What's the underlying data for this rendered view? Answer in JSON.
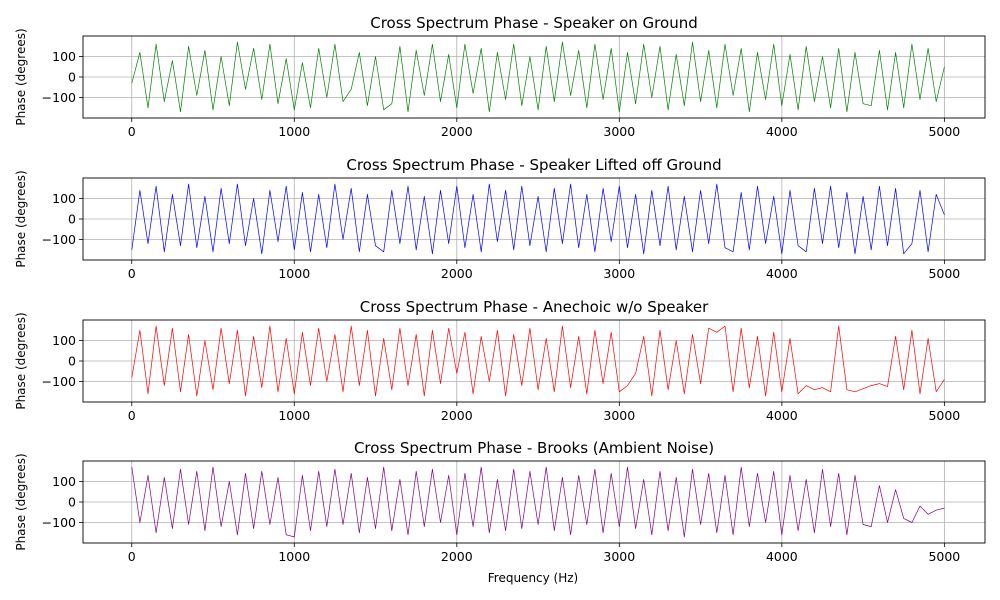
{
  "figure": {
    "xlabel": "Frequency (Hz)"
  },
  "chart_data": [
    {
      "type": "line",
      "title": "Cross Spectrum Phase - Speaker on Ground",
      "ylabel": "Phase (degrees)",
      "xlim": [
        -300,
        5250
      ],
      "ylim": [
        -200,
        200
      ],
      "xticks": [
        0,
        1000,
        2000,
        3000,
        4000,
        5000
      ],
      "yticks": [
        -100,
        0,
        100
      ],
      "grid": true,
      "series": [
        {
          "color": "#008000",
          "x": [
            0,
            50,
            100,
            150,
            200,
            250,
            300,
            350,
            400,
            450,
            500,
            550,
            600,
            650,
            700,
            750,
            800,
            850,
            900,
            950,
            1000,
            1050,
            1100,
            1150,
            1200,
            1250,
            1300,
            1350,
            1400,
            1450,
            1500,
            1550,
            1600,
            1650,
            1700,
            1750,
            1800,
            1850,
            1900,
            1950,
            2000,
            2050,
            2100,
            2150,
            2200,
            2250,
            2300,
            2350,
            2400,
            2450,
            2500,
            2550,
            2600,
            2650,
            2700,
            2750,
            2800,
            2850,
            2900,
            2950,
            3000,
            3050,
            3100,
            3150,
            3200,
            3250,
            3300,
            3350,
            3400,
            3450,
            3500,
            3550,
            3600,
            3650,
            3700,
            3750,
            3800,
            3850,
            3900,
            3950,
            4000,
            4050,
            4100,
            4150,
            4200,
            4250,
            4300,
            4350,
            4400,
            4450,
            4500,
            4550,
            4600,
            4650,
            4700,
            4750,
            4800,
            4850,
            4900,
            4950,
            5000
          ],
          "y": [
            -30,
            120,
            -150,
            160,
            -120,
            80,
            -170,
            150,
            -90,
            130,
            -160,
            100,
            -140,
            170,
            -60,
            140,
            -110,
            160,
            -130,
            90,
            -160,
            70,
            -150,
            140,
            -100,
            160,
            -120,
            -60,
            120,
            -140,
            100,
            -160,
            -130,
            150,
            -170,
            130,
            -90,
            160,
            -120,
            110,
            -150,
            160,
            -80,
            140,
            -170,
            120,
            -110,
            160,
            -140,
            100,
            -160,
            150,
            -120,
            170,
            -90,
            130,
            -150,
            160,
            -110,
            140,
            -170,
            120,
            -130,
            160,
            -100,
            150,
            -160,
            110,
            -140,
            170,
            -120,
            130,
            -150,
            160,
            -90,
            140,
            -170,
            120,
            -110,
            160,
            -140,
            110,
            -160,
            150,
            -120,
            100,
            -150,
            140,
            -170,
            120,
            -130,
            -140,
            130,
            -160,
            120,
            -150,
            160,
            -110,
            140,
            -120,
            50
          ]
        }
      ]
    },
    {
      "type": "line",
      "title": "Cross Spectrum Phase - Speaker Lifted off Ground",
      "ylabel": "Phase (degrees)",
      "xlim": [
        -300,
        5250
      ],
      "ylim": [
        -200,
        200
      ],
      "xticks": [
        0,
        1000,
        2000,
        3000,
        4000,
        5000
      ],
      "yticks": [
        -100,
        0,
        100
      ],
      "grid": true,
      "series": [
        {
          "color": "#0000ff",
          "x": [
            0,
            50,
            100,
            150,
            200,
            250,
            300,
            350,
            400,
            450,
            500,
            550,
            600,
            650,
            700,
            750,
            800,
            850,
            900,
            950,
            1000,
            1050,
            1100,
            1150,
            1200,
            1250,
            1300,
            1350,
            1400,
            1450,
            1500,
            1550,
            1600,
            1650,
            1700,
            1750,
            1800,
            1850,
            1900,
            1950,
            2000,
            2050,
            2100,
            2150,
            2200,
            2250,
            2300,
            2350,
            2400,
            2450,
            2500,
            2550,
            2600,
            2650,
            2700,
            2750,
            2800,
            2850,
            2900,
            2950,
            3000,
            3050,
            3100,
            3150,
            3200,
            3250,
            3300,
            3350,
            3400,
            3450,
            3500,
            3550,
            3600,
            3650,
            3700,
            3750,
            3800,
            3850,
            3900,
            3950,
            4000,
            4050,
            4100,
            4150,
            4200,
            4250,
            4300,
            4350,
            4400,
            4450,
            4500,
            4550,
            4600,
            4650,
            4700,
            4750,
            4800,
            4850,
            4900,
            4950,
            5000
          ],
          "y": [
            -150,
            140,
            -120,
            160,
            -160,
            120,
            -130,
            170,
            -140,
            110,
            -160,
            150,
            -120,
            170,
            -130,
            100,
            -170,
            140,
            -110,
            160,
            -150,
            130,
            -160,
            120,
            -140,
            170,
            -100,
            150,
            -160,
            120,
            -130,
            -160,
            140,
            -120,
            160,
            -150,
            110,
            -170,
            140,
            -120,
            160,
            -140,
            120,
            -160,
            170,
            -110,
            140,
            -150,
            160,
            -130,
            110,
            -160,
            150,
            -120,
            170,
            -140,
            120,
            -160,
            150,
            -110,
            160,
            -140,
            120,
            -170,
            140,
            -130,
            160,
            -150,
            110,
            -160,
            140,
            -120,
            170,
            -140,
            -160,
            130,
            -150,
            160,
            -120,
            110,
            -170,
            140,
            -130,
            -160,
            150,
            -120,
            160,
            -140,
            130,
            -170,
            110,
            -150,
            160,
            -130,
            150,
            -170,
            -120,
            140,
            -160,
            120,
            20
          ]
        }
      ]
    },
    {
      "type": "line",
      "title": "Cross Spectrum Phase - Anechoic w/o Speaker",
      "ylabel": "Phase (degrees)",
      "xlim": [
        -300,
        5250
      ],
      "ylim": [
        -200,
        200
      ],
      "xticks": [
        0,
        1000,
        2000,
        3000,
        4000,
        5000
      ],
      "yticks": [
        -100,
        0,
        100
      ],
      "grid": true,
      "series": [
        {
          "color": "#ff0000",
          "x": [
            0,
            50,
            100,
            150,
            200,
            250,
            300,
            350,
            400,
            450,
            500,
            550,
            600,
            650,
            700,
            750,
            800,
            850,
            900,
            950,
            1000,
            1050,
            1100,
            1150,
            1200,
            1250,
            1300,
            1350,
            1400,
            1450,
            1500,
            1550,
            1600,
            1650,
            1700,
            1750,
            1800,
            1850,
            1900,
            1950,
            2000,
            2050,
            2100,
            2150,
            2200,
            2250,
            2300,
            2350,
            2400,
            2450,
            2500,
            2550,
            2600,
            2650,
            2700,
            2750,
            2800,
            2850,
            2900,
            2950,
            3000,
            3050,
            3100,
            3150,
            3200,
            3250,
            3300,
            3350,
            3400,
            3450,
            3500,
            3550,
            3600,
            3650,
            3700,
            3750,
            3800,
            3850,
            3900,
            3950,
            4000,
            4050,
            4100,
            4150,
            4200,
            4250,
            4300,
            4350,
            4400,
            4450,
            4500,
            4550,
            4600,
            4650,
            4700,
            4750,
            4800,
            4850,
            4900,
            4950,
            5000
          ],
          "y": [
            -80,
            150,
            -160,
            170,
            -120,
            160,
            -150,
            130,
            -170,
            100,
            -140,
            160,
            -110,
            150,
            -170,
            120,
            -130,
            170,
            -150,
            110,
            -160,
            140,
            -120,
            160,
            -100,
            130,
            -150,
            170,
            -120,
            150,
            -170,
            110,
            -140,
            160,
            -120,
            130,
            -170,
            150,
            -110,
            160,
            -60,
            140,
            -160,
            120,
            -100,
            150,
            -170,
            130,
            -120,
            160,
            -140,
            110,
            -150,
            170,
            -130,
            120,
            -160,
            150,
            -110,
            140,
            -150,
            -120,
            -60,
            120,
            -170,
            150,
            -140,
            100,
            -160,
            130,
            -110,
            160,
            140,
            170,
            -150,
            160,
            -130,
            120,
            -170,
            140,
            -150,
            110,
            -160,
            -120,
            -140,
            -130,
            -150,
            170,
            -140,
            -150,
            -135,
            -120,
            -110,
            -125,
            120,
            -140,
            150,
            -160,
            110,
            -150,
            -90
          ]
        }
      ]
    },
    {
      "type": "line",
      "title": "Cross Spectrum Phase - Brooks (Ambient Noise)",
      "ylabel": "Phase (degrees)",
      "xlim": [
        -300,
        5250
      ],
      "ylim": [
        -200,
        200
      ],
      "xticks": [
        0,
        1000,
        2000,
        3000,
        4000,
        5000
      ],
      "yticks": [
        -100,
        0,
        100
      ],
      "grid": true,
      "series": [
        {
          "color": "#800080",
          "x": [
            0,
            50,
            100,
            150,
            200,
            250,
            300,
            350,
            400,
            450,
            500,
            550,
            600,
            650,
            700,
            750,
            800,
            850,
            900,
            950,
            1000,
            1050,
            1100,
            1150,
            1200,
            1250,
            1300,
            1350,
            1400,
            1450,
            1500,
            1550,
            1600,
            1650,
            1700,
            1750,
            1800,
            1850,
            1900,
            1950,
            2000,
            2050,
            2100,
            2150,
            2200,
            2250,
            2300,
            2350,
            2400,
            2450,
            2500,
            2550,
            2600,
            2650,
            2700,
            2750,
            2800,
            2850,
            2900,
            2950,
            3000,
            3050,
            3100,
            3150,
            3200,
            3250,
            3300,
            3350,
            3400,
            3450,
            3500,
            3550,
            3600,
            3650,
            3700,
            3750,
            3800,
            3850,
            3900,
            3950,
            4000,
            4050,
            4100,
            4150,
            4200,
            4250,
            4300,
            4350,
            4400,
            4450,
            4500,
            4550,
            4600,
            4650,
            4700,
            4750,
            4800,
            4850,
            4900,
            4950,
            5000
          ],
          "y": [
            170,
            -100,
            130,
            -150,
            120,
            -130,
            160,
            -110,
            150,
            -140,
            170,
            -120,
            100,
            -160,
            140,
            -130,
            150,
            -110,
            120,
            -160,
            -170,
            130,
            -140,
            150,
            -120,
            160,
            -110,
            140,
            -150,
            120,
            -130,
            170,
            -140,
            110,
            -160,
            150,
            -120,
            160,
            -100,
            130,
            -160,
            140,
            -120,
            170,
            -150,
            110,
            -140,
            160,
            -130,
            150,
            -110,
            170,
            -140,
            120,
            -160,
            130,
            -110,
            160,
            -150,
            140,
            -120,
            170,
            -130,
            110,
            -160,
            150,
            -140,
            120,
            -170,
            160,
            -110,
            140,
            -150,
            130,
            -160,
            170,
            -120,
            140,
            -100,
            150,
            -160,
            130,
            -140,
            110,
            -150,
            160,
            -120,
            140,
            -160,
            130,
            -110,
            -120,
            80,
            -100,
            60,
            -80,
            -100,
            -20,
            -60,
            -40,
            -30
          ]
        }
      ]
    }
  ]
}
